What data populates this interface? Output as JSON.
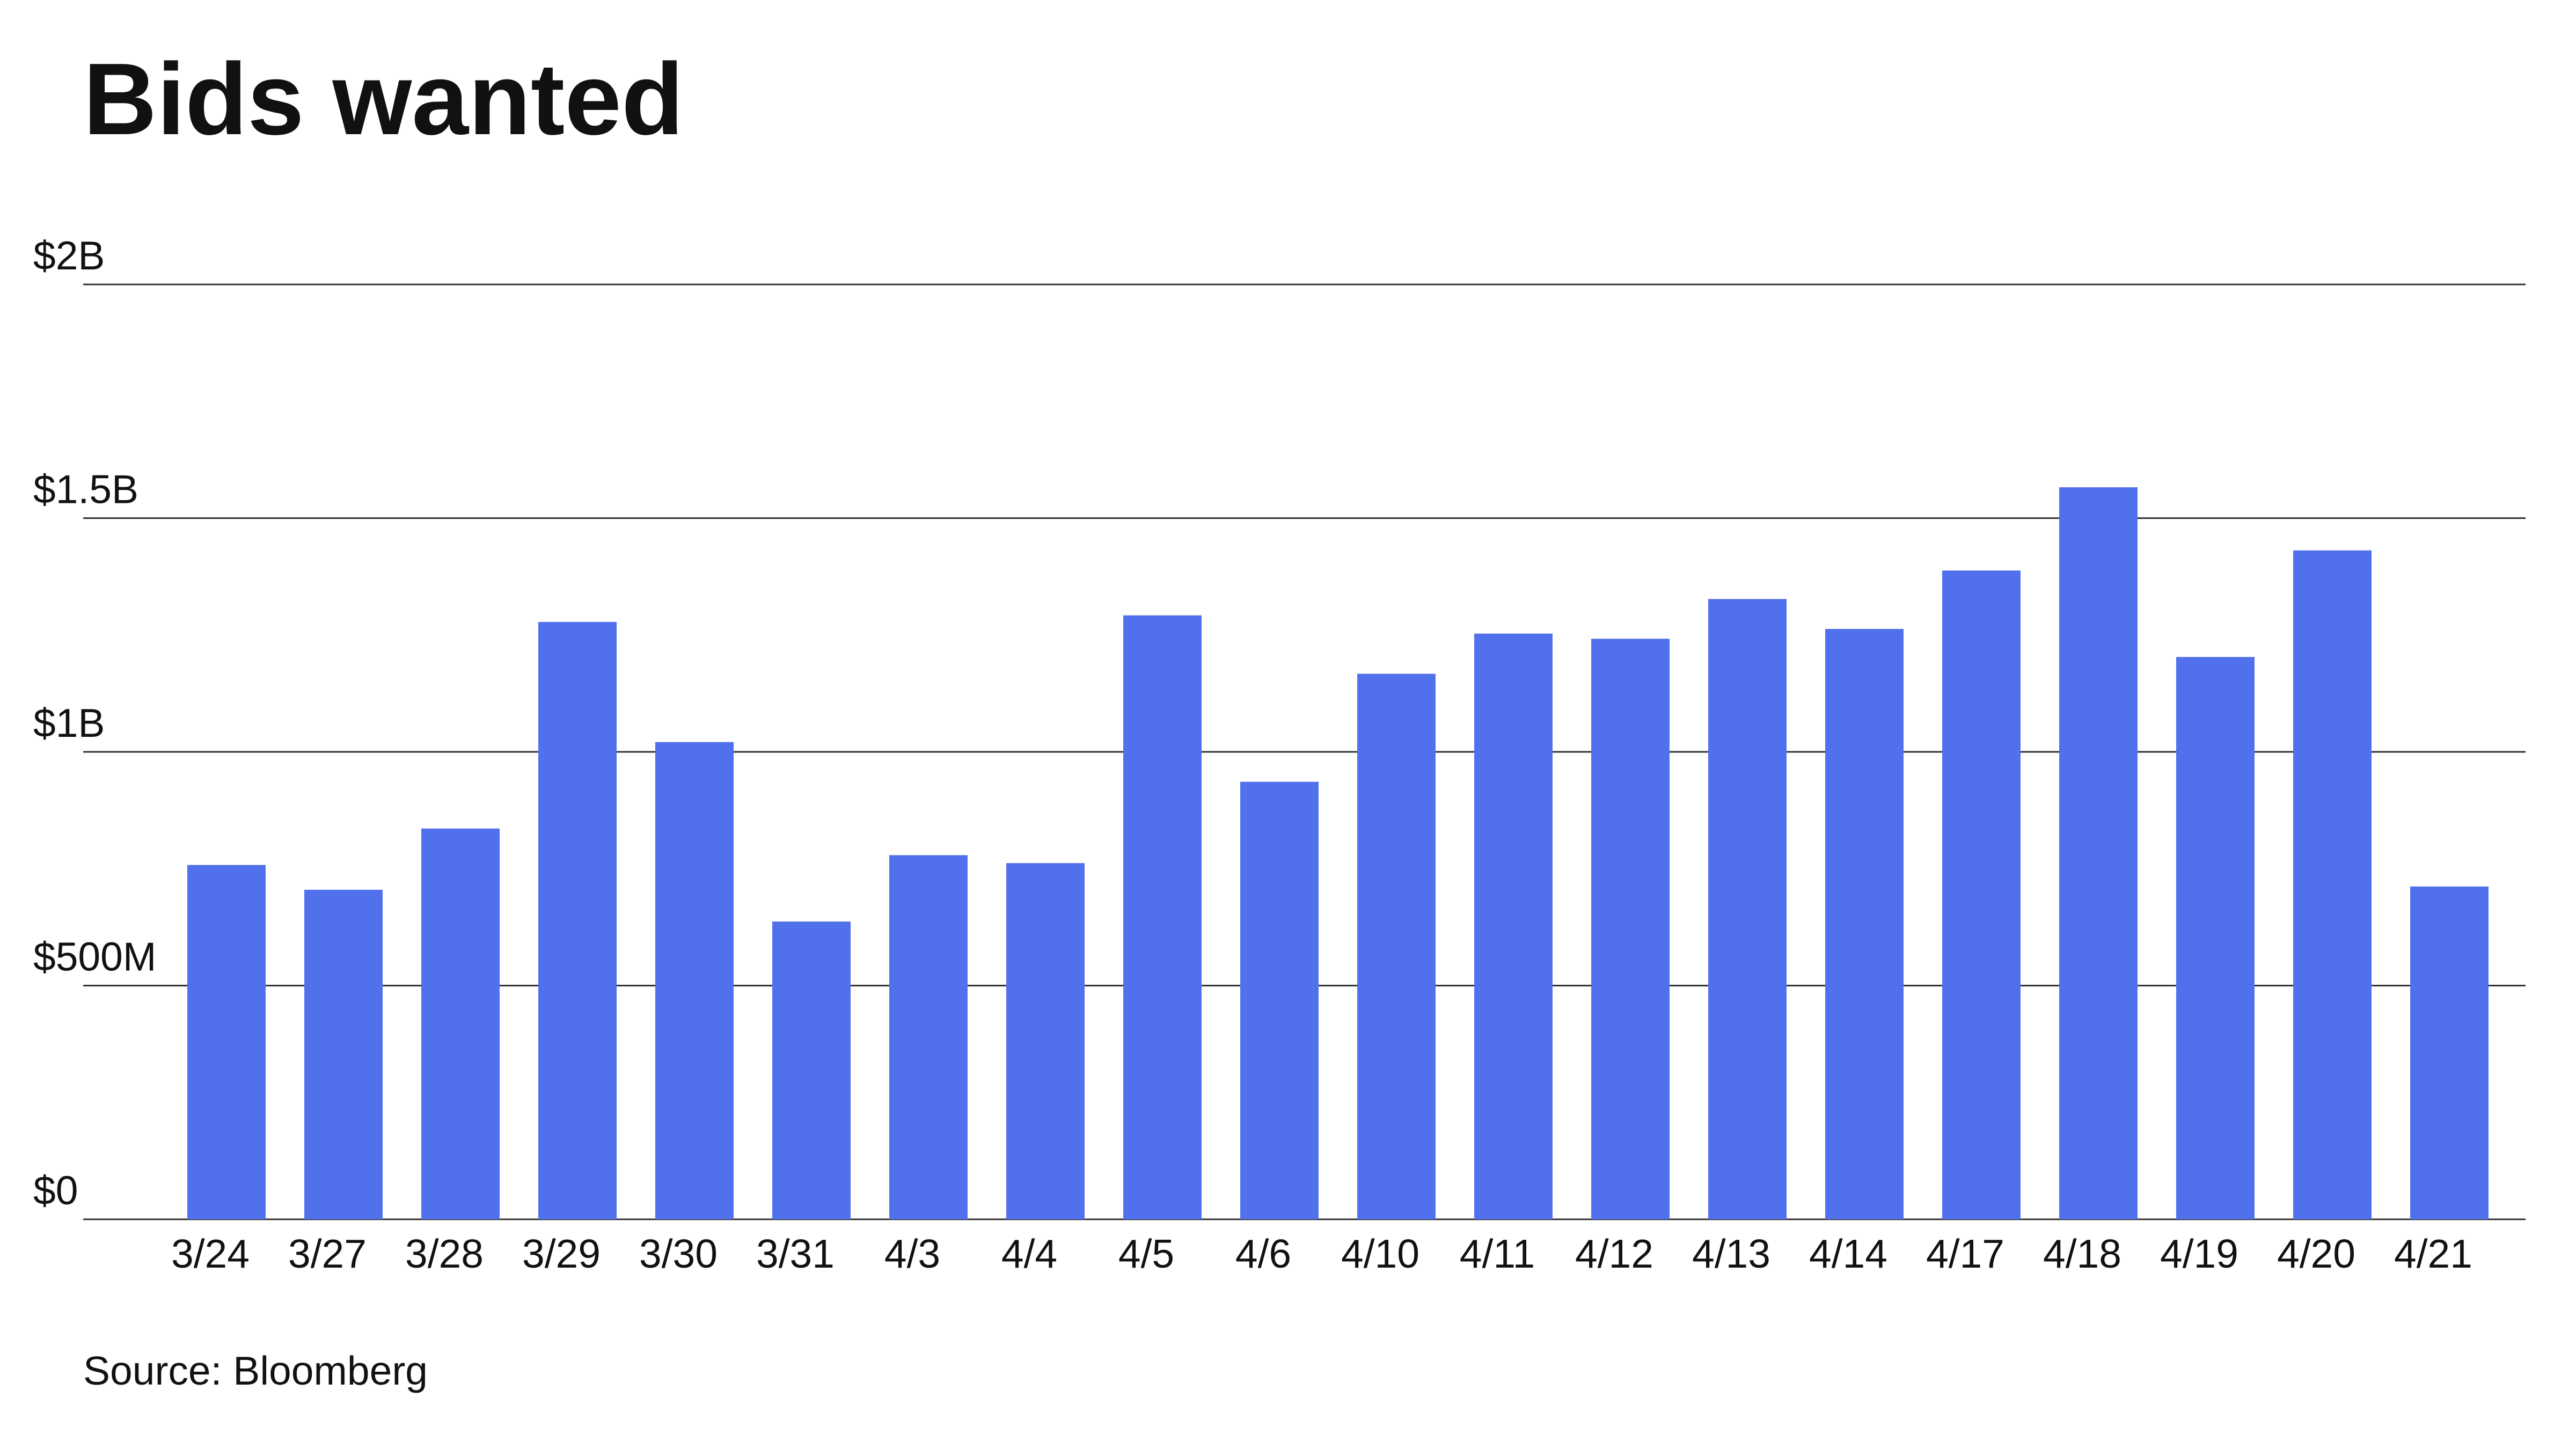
{
  "chart_data": {
    "type": "bar",
    "title": "Bids wanted",
    "source": "Source: Bloomberg",
    "categories": [
      "3/24",
      "3/27",
      "3/28",
      "3/29",
      "3/30",
      "3/31",
      "4/3",
      "4/4",
      "4/5",
      "4/6",
      "4/10",
      "4/11",
      "4/12",
      "4/13",
      "4/14",
      "4/17",
      "4/18",
      "4/19",
      "4/20",
      "4/21"
    ],
    "values": [
      758000000,
      705000000,
      836000000,
      1278000000,
      1021000000,
      637000000,
      779000000,
      762000000,
      1292000000,
      936000000,
      1167000000,
      1253000000,
      1242000000,
      1327000000,
      1263000000,
      1388000000,
      1566000000,
      1203000000,
      1431000000,
      712000000
    ],
    "color": "#5170ec",
    "ylim": [
      0,
      2000000000
    ],
    "yticks": [
      {
        "value": 0,
        "label": "$0"
      },
      {
        "value": 500000000,
        "label": "$500M"
      },
      {
        "value": 1000000000,
        "label": "$1B"
      },
      {
        "value": 1500000000,
        "label": "$1.5B"
      },
      {
        "value": 2000000000,
        "label": "$2B"
      }
    ],
    "grid": true
  }
}
